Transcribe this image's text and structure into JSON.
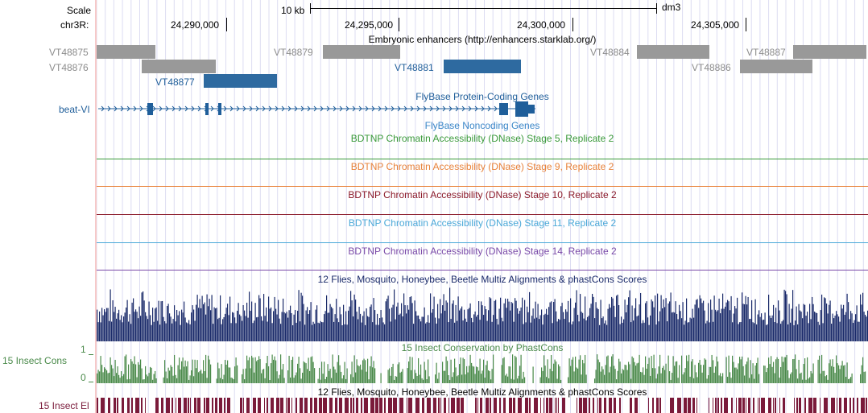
{
  "scale_row": {
    "label": "Scale",
    "bar_text": "10 kb",
    "assembly": "dm3"
  },
  "coord_row": {
    "chrom_label": "chr3R:",
    "ticks": [
      "24,290,000",
      "24,295,000",
      "24,300,000",
      "24,305,000"
    ]
  },
  "tracks": {
    "enhancers": {
      "title": "Embryonic enhancers (http://enhancers.starklab.org/)",
      "items": [
        {
          "label": "VT48875",
          "style": "gray"
        },
        {
          "label": "VT48876",
          "style": "gray"
        },
        {
          "label": "VT48877",
          "style": "blue"
        },
        {
          "label": "VT48879",
          "style": "gray"
        },
        {
          "label": "VT48881",
          "style": "blue"
        },
        {
          "label": "VT48884",
          "style": "gray"
        },
        {
          "label": "VT48886",
          "style": "gray"
        },
        {
          "label": "VT48887",
          "style": "gray"
        }
      ]
    },
    "protein_genes": {
      "title": "FlyBase Protein-Coding Genes",
      "gene_label": "beat-VI"
    },
    "noncoding": {
      "title": "FlyBase Noncoding Genes"
    },
    "dnase": [
      {
        "title": "BDTNP Chromatin Accessibility (DNase) Stage 5, Replicate 2",
        "color": "#3a9a3a"
      },
      {
        "title": "BDTNP Chromatin Accessibility (DNase) Stage 9, Replicate 2",
        "color": "#e8823a"
      },
      {
        "title": "BDTNP Chromatin Accessibility (DNase) Stage 10, Replicate 2",
        "color": "#8b1a2a"
      },
      {
        "title": "BDTNP Chromatin Accessibility (DNase) Stage 11, Replicate 2",
        "color": "#4aa8d8"
      },
      {
        "title": "BDTNP Chromatin Accessibility (DNase) Stage 14, Replicate 2",
        "color": "#7a4aa8"
      }
    ],
    "multiz": {
      "title": "12 Flies, Mosquito, Honeybee, Beetle Multiz Alignments & phastCons Scores",
      "color": "#1a2a6a"
    },
    "phastcons": {
      "title": "15 Insect Conservation by PhastCons",
      "left_label": "15 Insect Cons",
      "axis_max": "1",
      "axis_min": "0",
      "color": "#4a8a4a"
    },
    "elements": {
      "title": "12 Flies, Mosquito, Honeybee, Beetle Multiz Alignments & phastCons Scores",
      "left_label": "15 Insect El",
      "color": "#7a1a3a"
    }
  },
  "colors": {
    "gray_feature": "#999999",
    "blue_feature": "#2e6aa0",
    "gene_blue": "#1f5e9a",
    "grid": "#d8d8f0"
  }
}
